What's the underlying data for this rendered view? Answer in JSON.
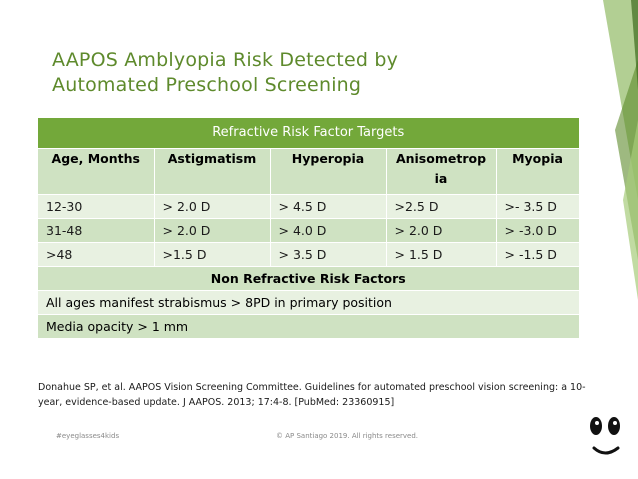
{
  "slide": {
    "title": "AAPOS Amblyopia Risk Detected by Automated Preschool Screening",
    "colors": {
      "accent": "#73a83a",
      "title": "#5e8a2c",
      "row_dark": "#cfe2c2",
      "row_light": "#e8f1e1"
    }
  },
  "table": {
    "title": "Refractive Risk Factor Targets",
    "headers": [
      "Age, Months",
      "Astigmatism",
      "Hyperopia",
      "Anisometropia",
      "Myopia"
    ],
    "rows": [
      [
        "12-30",
        "> 2.0 D",
        "> 4.5 D",
        ">2.5 D",
        ">- 3.5 D"
      ],
      [
        "31-48",
        "> 2.0 D",
        "> 4.0 D",
        "> 2.0 D",
        "> -3.0 D"
      ],
      [
        ">48",
        ">1.5 D",
        "> 3.5 D",
        "> 1.5 D",
        "> -1.5 D"
      ]
    ],
    "non_refractive_title": "Non Refractive Risk Factors",
    "non_refractive_rows": [
      "All ages manifest strabismus > 8PD in primary position",
      "Media opacity > 1 mm"
    ]
  },
  "citation": "Donahue SP, et al. AAPOS Vision Screening Committee. Guidelines for automated preschool vision screening: a 10-year, evidence-based update. J AAPOS. 2013; 17:4-8. [PubMed: 23360915]",
  "footer": {
    "hashtag": "#eyeglasses4kids",
    "copyright": "© AP Santiago 2019. All rights reserved."
  },
  "icons": {
    "logo": "smiley-face-icon"
  }
}
